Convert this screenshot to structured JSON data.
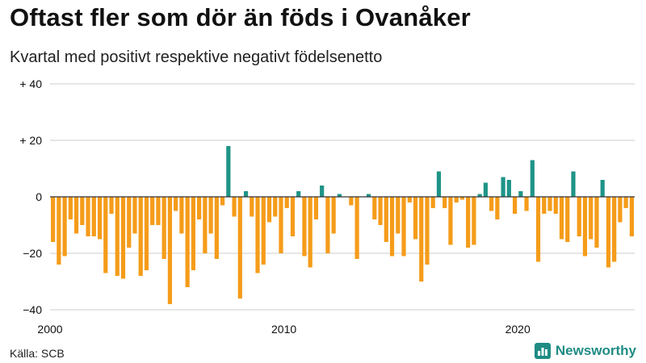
{
  "header": {
    "title": "Oftast fler som dör än föds i Ovanåker",
    "subtitle": "Kvartal med positivt respektive negativt födelsenetto"
  },
  "footer": {
    "source": "Källa: SCB",
    "brand": "Newsworthy"
  },
  "colors": {
    "positive": "#1f9488",
    "negative": "#f59c1a",
    "grid": "#cccccc",
    "zero_line": "#333333"
  },
  "chart_data": {
    "type": "bar",
    "title": "Oftast fler som dör än föds i Ovanåker",
    "subtitle": "Kvartal med positivt respektive negativt födelsenetto",
    "xlabel": "",
    "ylabel": "",
    "ylim": [
      -40,
      40
    ],
    "y_ticks": [
      -40,
      -20,
      0,
      20,
      40
    ],
    "y_tick_labels": [
      "−40",
      "−20",
      "0",
      "+ 20",
      "+ 40"
    ],
    "x_tick_labels": [
      "2000",
      "2010",
      "2020"
    ],
    "x_tick_years": [
      2000,
      2010,
      2020
    ],
    "start_year": 2000,
    "periods_per_year": 4,
    "grid": true,
    "legend": "none",
    "values": [
      -16,
      -24,
      -21,
      -8,
      -13,
      -10,
      -14,
      -14,
      -15,
      -27,
      -6,
      -28,
      -29,
      -18,
      -13,
      -28,
      -26,
      -10,
      -10,
      -22,
      -38,
      -5,
      -13,
      -32,
      -26,
      -8,
      -20,
      -13,
      -22,
      -3,
      18,
      -7,
      -36,
      2,
      -7,
      -27,
      -24,
      -9,
      -7,
      -20,
      -4,
      -14,
      2,
      -21,
      -25,
      -8,
      4,
      -20,
      -13,
      1,
      0,
      -3,
      -22,
      0,
      1,
      -8,
      -10,
      -16,
      -21,
      -13,
      -21,
      -2,
      -15,
      -30,
      -24,
      -4,
      9,
      -4,
      -17,
      -2,
      -1,
      -18,
      -17,
      1,
      5,
      -5,
      -8,
      7,
      6,
      -6,
      2,
      -5,
      13,
      -23,
      -6,
      -5,
      -6,
      -15,
      -16,
      9,
      -14,
      -21,
      -15,
      -18,
      6,
      -25,
      -23,
      -9,
      -4,
      -14
    ]
  }
}
